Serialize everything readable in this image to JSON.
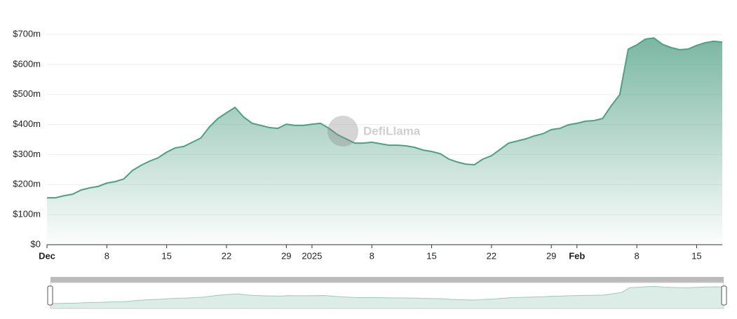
{
  "chart_data": {
    "type": "area",
    "watermark": "DefiLlama",
    "color": "#4f9f84",
    "categories": [
      "Dec",
      null,
      null,
      null,
      null,
      null,
      null,
      "8",
      null,
      null,
      null,
      null,
      null,
      null,
      "15",
      null,
      null,
      null,
      null,
      null,
      null,
      "22",
      null,
      null,
      null,
      null,
      null,
      null,
      "29",
      null,
      null,
      "2025",
      null,
      null,
      null,
      null,
      null,
      null,
      "8",
      null,
      null,
      null,
      null,
      null,
      null,
      "15",
      null,
      null,
      null,
      null,
      null,
      null,
      "22",
      null,
      null,
      null,
      null,
      null,
      null,
      "29",
      null,
      null,
      "Feb",
      null,
      null,
      null,
      null,
      null,
      null,
      "8",
      null,
      null,
      null,
      null,
      null,
      null,
      "15",
      null,
      null,
      null
    ],
    "values": [
      156,
      156,
      163,
      168,
      182,
      189,
      194,
      205,
      210,
      219,
      247,
      264,
      278,
      289,
      308,
      322,
      327,
      341,
      355,
      392,
      420,
      439,
      457,
      425,
      404,
      397,
      390,
      387,
      401,
      397,
      397,
      401,
      404,
      387,
      366,
      352,
      338,
      338,
      341,
      336,
      331,
      331,
      329,
      324,
      315,
      310,
      303,
      285,
      275,
      268,
      266,
      285,
      296,
      317,
      338,
      345,
      352,
      362,
      369,
      383,
      387,
      399,
      404,
      411,
      413,
      420,
      462,
      499,
      651,
      665,
      684,
      688,
      667,
      656,
      649,
      651,
      663,
      672,
      677,
      674
    ],
    "ylim": [
      0,
      700
    ],
    "yticks": [
      {
        "value": 0,
        "label": "$0"
      },
      {
        "value": 100,
        "label": "$100m"
      },
      {
        "value": 200,
        "label": "$200m"
      },
      {
        "value": 300,
        "label": "$300m"
      },
      {
        "value": 400,
        "label": "$400m"
      },
      {
        "value": 500,
        "label": "$500m"
      },
      {
        "value": 600,
        "label": "$600m"
      },
      {
        "value": 700,
        "label": "$700m"
      }
    ],
    "grid": true
  }
}
